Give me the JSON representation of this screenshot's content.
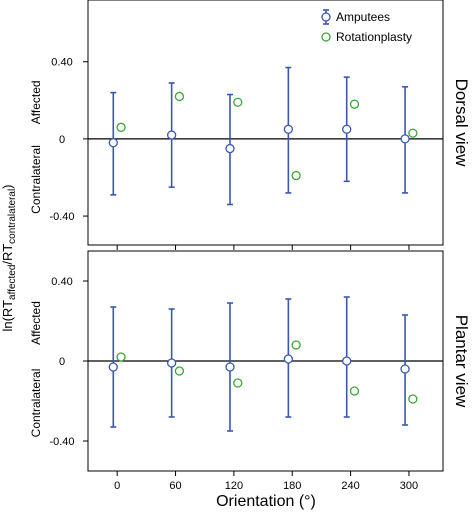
{
  "figure": {
    "y_axis_label_prefix": "ln(RT",
    "y_axis_label_sub1": "affected",
    "y_axis_label_mid": "/RT",
    "y_axis_label_sub2": "contralateral",
    "y_axis_label_suffix": ")",
    "x_axis_label": "Orientation (°)"
  },
  "colors": {
    "amputees": "#3a57b3",
    "rotationplasty": "#3aa832",
    "zero_line": "#000000",
    "frame": "#000000"
  },
  "chart_data": [
    {
      "type": "scatter",
      "title": "Dorsal view",
      "side_labels": {
        "upper": "Affected",
        "lower": "Contralateral"
      },
      "x_ticks": [
        0,
        60,
        120,
        180,
        240,
        300
      ],
      "x_tick_labels": [
        "0",
        "60",
        "120",
        "180",
        "240",
        "300"
      ],
      "y_ticks": [
        0.4,
        0,
        -0.4
      ],
      "y_tick_labels": [
        "0.40",
        "0",
        "-0.40"
      ],
      "xlim": [
        -30,
        335
      ],
      "ylim": [
        -0.55,
        0.72
      ],
      "legend": {
        "placement": "top-right",
        "entries": [
          "Amputees",
          "Rotationplasty"
        ]
      },
      "series": [
        {
          "name": "Amputees",
          "marker": "open-circle-errorbar",
          "x": [
            -4,
            56,
            116,
            176,
            236,
            296
          ],
          "y": [
            -0.02,
            0.02,
            -0.05,
            0.05,
            0.05,
            0.0
          ],
          "err_low": [
            -0.29,
            -0.25,
            -0.34,
            -0.28,
            -0.22,
            -0.28
          ],
          "err_high": [
            0.24,
            0.29,
            0.23,
            0.37,
            0.32,
            0.27
          ]
        },
        {
          "name": "Rotationplasty",
          "marker": "open-circle",
          "x": [
            4,
            64,
            124,
            184,
            244,
            304
          ],
          "y": [
            0.06,
            0.22,
            0.19,
            -0.19,
            0.18,
            0.03
          ]
        }
      ]
    },
    {
      "type": "scatter",
      "title": "Plantar view",
      "side_labels": {
        "upper": "Affected",
        "lower": "Contralateral"
      },
      "x_ticks": [
        0,
        60,
        120,
        180,
        240,
        300
      ],
      "x_tick_labels": [
        "0",
        "60",
        "120",
        "180",
        "240",
        "300"
      ],
      "y_ticks": [
        0.4,
        0,
        -0.4
      ],
      "y_tick_labels": [
        "0.40",
        "0",
        "-0.40"
      ],
      "xlim": [
        -30,
        335
      ],
      "ylim": [
        -0.55,
        0.55
      ],
      "series": [
        {
          "name": "Amputees",
          "marker": "open-circle-errorbar",
          "x": [
            -4,
            56,
            116,
            176,
            236,
            296
          ],
          "y": [
            -0.03,
            -0.01,
            -0.03,
            0.01,
            0.0,
            -0.04
          ],
          "err_low": [
            -0.33,
            -0.28,
            -0.35,
            -0.28,
            -0.28,
            -0.32
          ],
          "err_high": [
            0.27,
            0.26,
            0.29,
            0.31,
            0.32,
            0.23
          ]
        },
        {
          "name": "Rotationplasty",
          "marker": "open-circle",
          "x": [
            4,
            64,
            124,
            184,
            244,
            304
          ],
          "y": [
            0.02,
            -0.05,
            -0.11,
            0.08,
            -0.15,
            -0.19
          ]
        }
      ]
    }
  ]
}
